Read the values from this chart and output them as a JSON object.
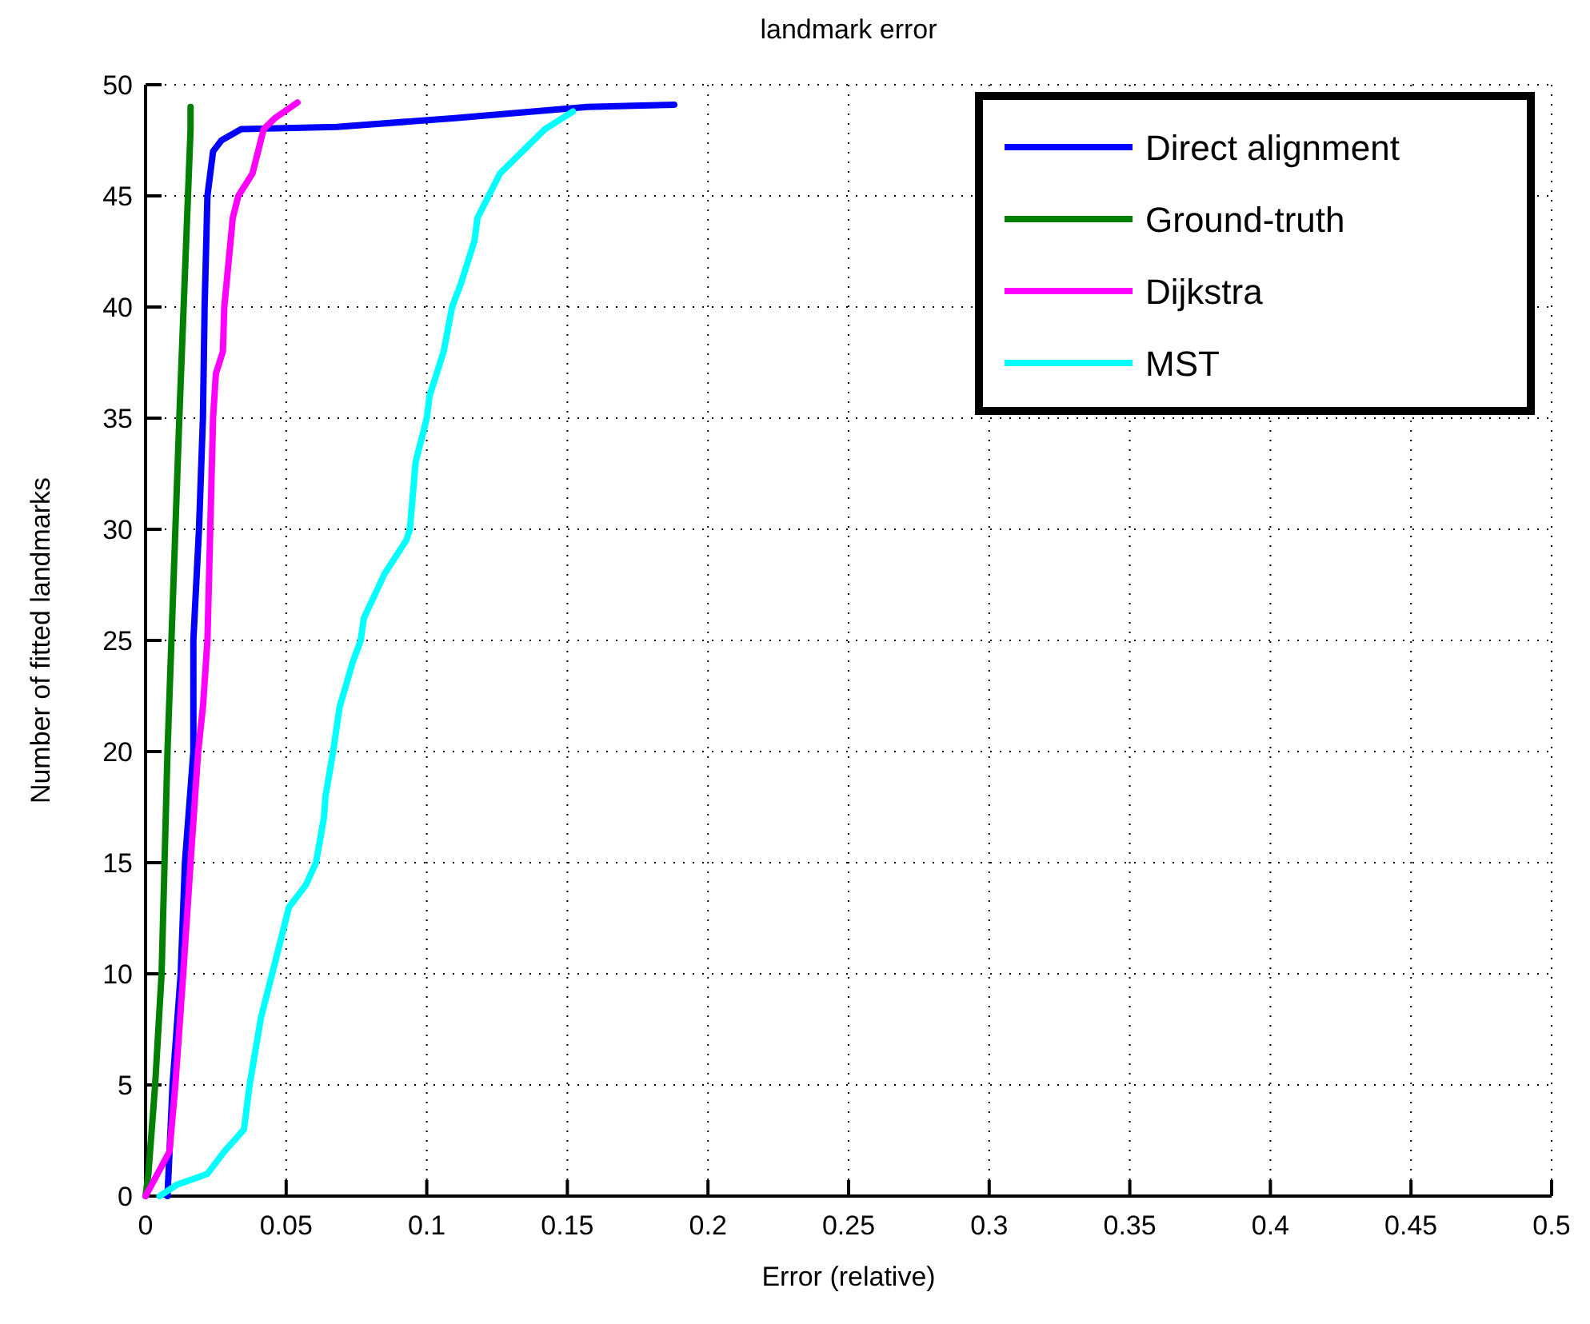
{
  "chart_data": {
    "type": "line",
    "title": "landmark error",
    "xlabel": "Error (relative)",
    "ylabel": "Number of fitted landmarks",
    "xlim": [
      0,
      0.5
    ],
    "ylim": [
      0,
      50
    ],
    "xticks": [
      0,
      0.05,
      0.1,
      0.15,
      0.2,
      0.25,
      0.3,
      0.35,
      0.4,
      0.45,
      0.5
    ],
    "yticks": [
      0,
      5,
      10,
      15,
      20,
      25,
      30,
      35,
      40,
      45,
      50
    ],
    "grid": true,
    "legend": "top right",
    "line_style": "solid",
    "marker": "none",
    "series": [
      {
        "name": "Direct alignment",
        "color": "#0000ff",
        "x": [
          0.0078,
          0.0096,
          0.0125,
          0.014,
          0.017,
          0.017,
          0.019,
          0.0204,
          0.021,
          0.022,
          0.024,
          0.027,
          0.034,
          0.068,
          0.11,
          0.157,
          0.188
        ],
        "values": [
          0,
          5,
          10,
          15,
          20,
          25,
          30,
          35,
          40,
          45,
          47,
          47.5,
          48,
          48.1,
          48.5,
          49,
          49.1
        ]
      },
      {
        "name": "Ground-truth",
        "color": "#008000",
        "x": [
          0,
          0.001,
          0.0034,
          0.0057,
          0.0078,
          0.012,
          0.016,
          0.016
        ],
        "values": [
          0,
          1,
          5,
          10,
          20,
          35,
          48,
          49
        ]
      },
      {
        "name": "Dijkstra",
        "color": "#ff00ff",
        "x": [
          0,
          0.0085,
          0.0106,
          0.0134,
          0.016,
          0.0187,
          0.0204,
          0.022,
          0.023,
          0.024,
          0.025,
          0.0275,
          0.028,
          0.031,
          0.033,
          0.038,
          0.041,
          0.042,
          0.046,
          0.054
        ],
        "values": [
          0,
          2,
          5,
          10,
          15,
          20,
          22,
          25,
          30,
          35,
          37,
          38,
          40,
          44,
          45,
          46,
          47.5,
          48,
          48.5,
          49.2
        ]
      },
      {
        "name": "MST",
        "color": "#00ffff",
        "x": [
          0.005,
          0.011,
          0.022,
          0.028,
          0.035,
          0.037,
          0.041,
          0.045,
          0.049,
          0.051,
          0.057,
          0.0606,
          0.0634,
          0.064,
          0.0667,
          0.069,
          0.0736,
          0.0765,
          0.0776,
          0.085,
          0.0927,
          0.094,
          0.096,
          0.1,
          0.101,
          0.106,
          0.109,
          0.112,
          0.117,
          0.118,
          0.122,
          0.126,
          0.134,
          0.142,
          0.152
        ],
        "values": [
          0,
          0.5,
          1,
          2,
          3,
          5,
          8,
          10,
          12,
          13,
          14,
          15,
          17,
          18,
          20,
          22,
          24,
          25,
          26,
          28,
          29.5,
          30,
          33,
          35,
          36,
          38,
          40,
          41,
          43,
          44,
          45,
          46,
          47,
          48,
          48.8
        ]
      }
    ]
  }
}
